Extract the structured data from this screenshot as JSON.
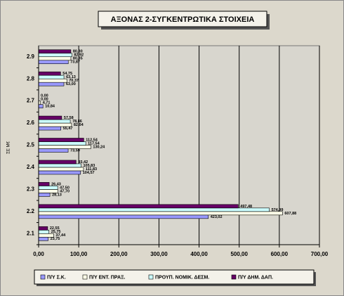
{
  "chart_data": {
    "type": "hbar",
    "title": "ΑΞΟΝΑΣ 2-ΣΥΓΚΕΝΤΡΩΤΙΚΑ ΣΤΟΙΧΕΙΑ",
    "y_axis_label": "ΣΕ Μ€",
    "categories": [
      "2.1",
      "2.2",
      "2.3",
      "2.4",
      "2.5",
      "2.6",
      "2.7",
      "2.8",
      "2.9"
    ],
    "series": [
      {
        "name": "Π/Υ Σ.Κ.",
        "color": "#9999ff",
        "values": [
          23.75,
          423.02,
          28.13,
          104.57,
          73.59,
          55.47,
          10.84,
          63.0,
          73.87
        ],
        "value_labels": [
          "23,75",
          "423,02",
          "28,13",
          "104,57",
          "73,59",
          "55,47",
          "10,84",
          "63,00",
          "73,87"
        ]
      },
      {
        "name": "Π/Υ ΕΝΤ. ΠΡΑΞ.",
        "color": "#ffffe8",
        "values": [
          37.44,
          607.88,
          47.7,
          111.83,
          130.24,
          82.04,
          4.71,
          70.37,
          80.35
        ],
        "value_labels": [
          "37,44",
          "607,88",
          "47,70",
          "111,83",
          "130,24",
          "82,04",
          "4,71",
          "70,37",
          "80,35"
        ]
      },
      {
        "name": "ΠΡΟΥΠ. ΝΟΜΙΚ. ΔΕΣΜ.",
        "color": "#ccffff",
        "values": [
          25.75,
          574.99,
          47.5,
          105.83,
          117.54,
          78.86,
          0.0,
          63.13,
          82.92
        ],
        "value_labels": [
          "25,75",
          "574,99",
          "47,50",
          "105,83",
          "117,54",
          "78,86",
          "0,00",
          "63,13",
          "82,92"
        ]
      },
      {
        "name": "Π/Υ ΔΗΜ. ΔΑΠ.",
        "color": "#660066",
        "values": [
          22.55,
          497.48,
          26.43,
          93.42,
          112.54,
          57.58,
          0.0,
          54.75,
          80.3
        ],
        "value_labels": [
          "22,55",
          "497,48",
          "26,43",
          "93,42",
          "112,54",
          "57,58",
          "0,00",
          "54,75",
          "80,30"
        ]
      }
    ],
    "xlim": [
      0,
      700
    ],
    "xticks": [
      {
        "value": 0,
        "label": "0,00"
      },
      {
        "value": 100,
        "label": "100,00"
      },
      {
        "value": 200,
        "label": "200,00"
      },
      {
        "value": 300,
        "label": "300,00"
      },
      {
        "value": 400,
        "label": "400,00"
      },
      {
        "value": 500,
        "label": "500,00"
      },
      {
        "value": 600,
        "label": "600,00"
      },
      {
        "value": 700,
        "label": "700,00"
      }
    ],
    "grid": true
  }
}
